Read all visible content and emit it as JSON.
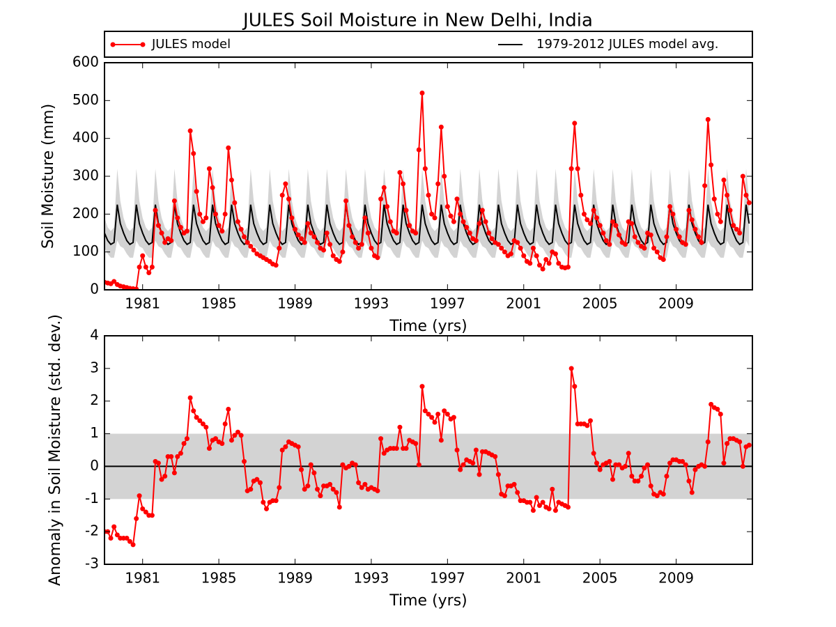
{
  "chart_data": [
    {
      "type": "line",
      "title": "JULES Soil Moisture in New Delhi, India",
      "xlabel": "Time (yrs)",
      "ylabel": "Soil Moisture (mm)",
      "xlim": [
        1979,
        2013
      ],
      "ylim": [
        0,
        600
      ],
      "yticks": [
        0,
        100,
        200,
        300,
        400,
        500,
        600
      ],
      "xticks": [
        1981,
        1985,
        1989,
        1993,
        1997,
        2001,
        2005,
        2009
      ],
      "legend": "top",
      "x": [
        1979,
        1979.17,
        1979.33,
        1979.5,
        1979.67,
        1979.83,
        1980,
        1980.17,
        1980.33,
        1980.5,
        1980.67,
        1980.83,
        1981,
        1981.17,
        1981.33,
        1981.5,
        1981.67,
        1981.83,
        1982,
        1982.17,
        1982.33,
        1982.5,
        1982.67,
        1982.83,
        1983,
        1983.17,
        1983.33,
        1983.5,
        1983.67,
        1983.83,
        1984,
        1984.17,
        1984.33,
        1984.5,
        1984.67,
        1984.83,
        1985,
        1985.17,
        1985.33,
        1985.5,
        1985.67,
        1985.83,
        1986,
        1986.17,
        1986.33,
        1986.5,
        1986.67,
        1986.83,
        1987,
        1987.17,
        1987.33,
        1987.5,
        1987.67,
        1987.83,
        1988,
        1988.17,
        1988.33,
        1988.5,
        1988.67,
        1988.83,
        1989,
        1989.17,
        1989.33,
        1989.5,
        1989.67,
        1989.83,
        1990,
        1990.17,
        1990.33,
        1990.5,
        1990.67,
        1990.83,
        1991,
        1991.17,
        1991.33,
        1991.5,
        1991.67,
        1991.83,
        1992,
        1992.17,
        1992.33,
        1992.5,
        1992.67,
        1992.83,
        1993,
        1993.17,
        1993.33,
        1993.5,
        1993.67,
        1993.83,
        1994,
        1994.17,
        1994.33,
        1994.5,
        1994.67,
        1994.83,
        1995,
        1995.17,
        1995.33,
        1995.5,
        1995.67,
        1995.83,
        1996,
        1996.17,
        1996.33,
        1996.5,
        1996.67,
        1996.83,
        1997,
        1997.17,
        1997.33,
        1997.5,
        1997.67,
        1997.83,
        1998,
        1998.17,
        1998.33,
        1998.5,
        1998.67,
        1998.83,
        1999,
        1999.17,
        1999.33,
        1999.5,
        1999.67,
        1999.83,
        2000,
        2000.17,
        2000.33,
        2000.5,
        2000.67,
        2000.83,
        2001,
        2001.17,
        2001.33,
        2001.5,
        2001.67,
        2001.83,
        2002,
        2002.17,
        2002.33,
        2002.5,
        2002.67,
        2002.83,
        2003,
        2003.17,
        2003.33,
        2003.5,
        2003.67,
        2003.83,
        2004,
        2004.17,
        2004.33,
        2004.5,
        2004.67,
        2004.83,
        2005,
        2005.17,
        2005.33,
        2005.5,
        2005.67,
        2005.83,
        2006,
        2006.17,
        2006.33,
        2006.5,
        2006.67,
        2006.83,
        2007,
        2007.17,
        2007.33,
        2007.5,
        2007.67,
        2007.83,
        2008,
        2008.17,
        2008.33,
        2008.5,
        2008.67,
        2008.83,
        2009,
        2009.17,
        2009.33,
        2009.5,
        2009.67,
        2009.83,
        2010,
        2010.17,
        2010.33,
        2010.5,
        2010.67,
        2010.83,
        2011,
        2011.17,
        2011.33,
        2011.5,
        2011.67,
        2011.83,
        2012,
        2012.17,
        2012.33,
        2012.5,
        2012.67,
        2012.83
      ],
      "series": [
        {
          "name": "JULES model",
          "color": "#ff0000",
          "values": [
            20,
            18,
            16,
            22,
            14,
            10,
            8,
            6,
            4,
            3,
            2,
            60,
            90,
            60,
            45,
            60,
            210,
            170,
            150,
            125,
            135,
            130,
            235,
            190,
            165,
            150,
            155,
            420,
            360,
            260,
            200,
            180,
            190,
            320,
            270,
            200,
            170,
            155,
            200,
            375,
            290,
            230,
            180,
            160,
            140,
            125,
            115,
            105,
            95,
            90,
            85,
            80,
            75,
            68,
            65,
            110,
            250,
            280,
            240,
            190,
            160,
            145,
            135,
            125,
            175,
            150,
            140,
            125,
            110,
            105,
            150,
            120,
            90,
            80,
            75,
            100,
            235,
            170,
            140,
            125,
            110,
            120,
            190,
            150,
            110,
            90,
            85,
            240,
            270,
            220,
            180,
            155,
            150,
            310,
            280,
            210,
            170,
            155,
            150,
            370,
            520,
            320,
            250,
            200,
            190,
            280,
            430,
            300,
            220,
            195,
            180,
            240,
            200,
            180,
            165,
            150,
            135,
            130,
            175,
            210,
            180,
            150,
            135,
            125,
            120,
            110,
            100,
            90,
            95,
            130,
            125,
            110,
            90,
            75,
            70,
            110,
            90,
            65,
            55,
            80,
            70,
            100,
            95,
            70,
            60,
            58,
            60,
            320,
            440,
            320,
            250,
            200,
            185,
            175,
            210,
            190,
            170,
            150,
            130,
            120,
            180,
            170,
            145,
            125,
            120,
            180,
            175,
            140,
            125,
            115,
            110,
            150,
            145,
            110,
            100,
            85,
            80,
            140,
            220,
            200,
            160,
            140,
            125,
            120,
            210,
            185,
            160,
            140,
            125,
            275,
            450,
            330,
            240,
            200,
            180,
            290,
            250,
            210,
            170,
            160,
            150,
            300,
            250,
            230
          ]
        }
      ],
      "climatology": {
        "name": "1979-2012 JULES model avg.",
        "color": "#000000",
        "band_color": "#d3d3d3",
        "values": [
          150,
          130,
          120,
          125,
          225,
          175
        ],
        "std": [
          40,
          35,
          35,
          40,
          95,
          60
        ]
      }
    },
    {
      "type": "line",
      "xlabel": "Time (yrs)",
      "ylabel": "Anomaly in Soil Moisture (std. dev.)",
      "xlim": [
        1979,
        2013
      ],
      "ylim": [
        -3,
        4
      ],
      "yticks": [
        -3,
        -2,
        -1,
        0,
        1,
        2,
        3,
        4
      ],
      "xticks": [
        1981,
        1985,
        1989,
        1993,
        1997,
        2001,
        2005,
        2009
      ],
      "band": [
        -1,
        1
      ],
      "band_color": "#d3d3d3",
      "hline": 0,
      "x": [
        1979,
        1979.17,
        1979.33,
        1979.5,
        1979.67,
        1979.83,
        1980,
        1980.17,
        1980.33,
        1980.5,
        1980.67,
        1980.83,
        1981,
        1981.17,
        1981.33,
        1981.5,
        1981.67,
        1981.83,
        1982,
        1982.17,
        1982.33,
        1982.5,
        1982.67,
        1982.83,
        1983,
        1983.17,
        1983.33,
        1983.5,
        1983.67,
        1983.83,
        1984,
        1984.17,
        1984.33,
        1984.5,
        1984.67,
        1984.83,
        1985,
        1985.17,
        1985.33,
        1985.5,
        1985.67,
        1985.83,
        1986,
        1986.17,
        1986.33,
        1986.5,
        1986.67,
        1986.83,
        1987,
        1987.17,
        1987.33,
        1987.5,
        1987.67,
        1987.83,
        1988,
        1988.17,
        1988.33,
        1988.5,
        1988.67,
        1988.83,
        1989,
        1989.17,
        1989.33,
        1989.5,
        1989.67,
        1989.83,
        1990,
        1990.17,
        1990.33,
        1990.5,
        1990.67,
        1990.83,
        1991,
        1991.17,
        1991.33,
        1991.5,
        1991.67,
        1991.83,
        1992,
        1992.17,
        1992.33,
        1992.5,
        1992.67,
        1992.83,
        1993,
        1993.17,
        1993.33,
        1993.5,
        1993.67,
        1993.83,
        1994,
        1994.17,
        1994.33,
        1994.5,
        1994.67,
        1994.83,
        1995,
        1995.17,
        1995.33,
        1995.5,
        1995.67,
        1995.83,
        1996,
        1996.17,
        1996.33,
        1996.5,
        1996.67,
        1996.83,
        1997,
        1997.17,
        1997.33,
        1997.5,
        1997.67,
        1997.83,
        1998,
        1998.17,
        1998.33,
        1998.5,
        1998.67,
        1998.83,
        1999,
        1999.17,
        1999.33,
        1999.5,
        1999.67,
        1999.83,
        2000,
        2000.17,
        2000.33,
        2000.5,
        2000.67,
        2000.83,
        2001,
        2001.17,
        2001.33,
        2001.5,
        2001.67,
        2001.83,
        2002,
        2002.17,
        2002.33,
        2002.5,
        2002.67,
        2002.83,
        2003,
        2003.17,
        2003.33,
        2003.5,
        2003.67,
        2003.83,
        2004,
        2004.17,
        2004.33,
        2004.5,
        2004.67,
        2004.83,
        2005,
        2005.17,
        2005.33,
        2005.5,
        2005.67,
        2005.83,
        2006,
        2006.17,
        2006.33,
        2006.5,
        2006.67,
        2006.83,
        2007,
        2007.17,
        2007.33,
        2007.5,
        2007.67,
        2007.83,
        2008,
        2008.17,
        2008.33,
        2008.5,
        2008.67,
        2008.83,
        2009,
        2009.17,
        2009.33,
        2009.5,
        2009.67,
        2009.83,
        2010,
        2010.17,
        2010.33,
        2010.5,
        2010.67,
        2010.83,
        2011,
        2011.17,
        2011.33,
        2011.5,
        2011.67,
        2011.83,
        2012,
        2012.17,
        2012.33,
        2012.5,
        2012.67,
        2012.83
      ],
      "series": [
        {
          "color": "#ff0000",
          "values": [
            -2.0,
            -2.0,
            -2.2,
            -1.85,
            -2.1,
            -2.2,
            -2.2,
            -2.2,
            -2.3,
            -2.4,
            -1.6,
            -0.9,
            -1.3,
            -1.4,
            -1.5,
            -1.5,
            0.15,
            0.1,
            -0.4,
            -0.3,
            0.3,
            0.3,
            -0.2,
            0.3,
            0.4,
            0.7,
            0.85,
            2.1,
            1.7,
            1.5,
            1.4,
            1.3,
            1.2,
            0.55,
            0.8,
            0.85,
            0.75,
            0.7,
            1.3,
            1.75,
            0.8,
            0.95,
            1.05,
            0.95,
            0.15,
            -0.75,
            -0.7,
            -0.45,
            -0.4,
            -0.5,
            -1.1,
            -1.3,
            -1.1,
            -1.05,
            -1.05,
            -0.65,
            0.5,
            0.6,
            0.75,
            0.7,
            0.65,
            0.6,
            -0.1,
            -0.7,
            -0.6,
            0.05,
            -0.2,
            -0.7,
            -0.9,
            -0.6,
            -0.6,
            -0.55,
            -0.7,
            -0.8,
            -1.25,
            0.05,
            -0.05,
            0.0,
            0.1,
            0.05,
            -0.5,
            -0.65,
            -0.55,
            -0.7,
            -0.65,
            -0.7,
            -0.75,
            0.85,
            0.4,
            0.5,
            0.55,
            0.55,
            0.55,
            1.2,
            0.55,
            0.55,
            0.8,
            0.75,
            0.7,
            0.05,
            2.45,
            1.7,
            1.6,
            1.5,
            1.35,
            1.6,
            0.8,
            1.7,
            1.6,
            1.45,
            1.5,
            0.5,
            -0.1,
            0.05,
            0.2,
            0.15,
            0.1,
            0.5,
            -0.25,
            0.45,
            0.45,
            0.4,
            0.35,
            0.3,
            -0.25,
            -0.85,
            -0.9,
            -0.6,
            -0.6,
            -0.55,
            -0.8,
            -1.05,
            -1.05,
            -1.1,
            -1.1,
            -1.35,
            -0.95,
            -1.2,
            -1.1,
            -1.25,
            -1.3,
            -0.7,
            -1.35,
            -1.1,
            -1.15,
            -1.2,
            -1.25,
            3.0,
            2.45,
            1.3,
            1.3,
            1.3,
            1.25,
            1.4,
            0.4,
            0.1,
            -0.1,
            0.05,
            0.1,
            0.15,
            -0.4,
            0.05,
            0.05,
            -0.05,
            0.0,
            0.4,
            -0.3,
            -0.45,
            -0.45,
            -0.3,
            -0.05,
            0.05,
            -0.6,
            -0.85,
            -0.9,
            -0.8,
            -0.85,
            -0.3,
            0.1,
            0.2,
            0.2,
            0.15,
            0.15,
            0.05,
            -0.45,
            -0.8,
            -0.1,
            0.0,
            0.05,
            0.0,
            0.75,
            1.9,
            1.8,
            1.75,
            1.6,
            0.1,
            0.7,
            0.85,
            0.85,
            0.8,
            0.75,
            0.0,
            0.6,
            0.65
          ]
        }
      ]
    }
  ]
}
